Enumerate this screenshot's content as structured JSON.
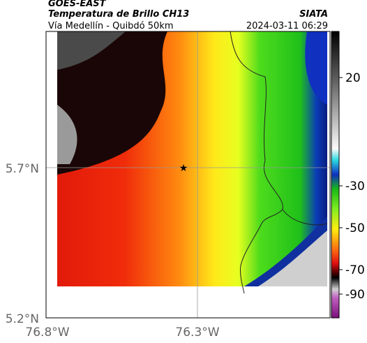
{
  "header": {
    "source": "GOES-EAST",
    "title": "Temperatura de Brillo CH13",
    "org": "SIATA",
    "subtitle": "Vía Medellín - Quibdó 50km",
    "date": "2024-03-11 06:29"
  },
  "axes": {
    "y_labels": [
      "5.7°N",
      "5.2°N"
    ],
    "x_labels": [
      "76.8°W",
      "76.3°W"
    ]
  },
  "colorbar": {
    "labels": [
      20,
      -30,
      -50,
      -70,
      -90
    ]
  }
}
